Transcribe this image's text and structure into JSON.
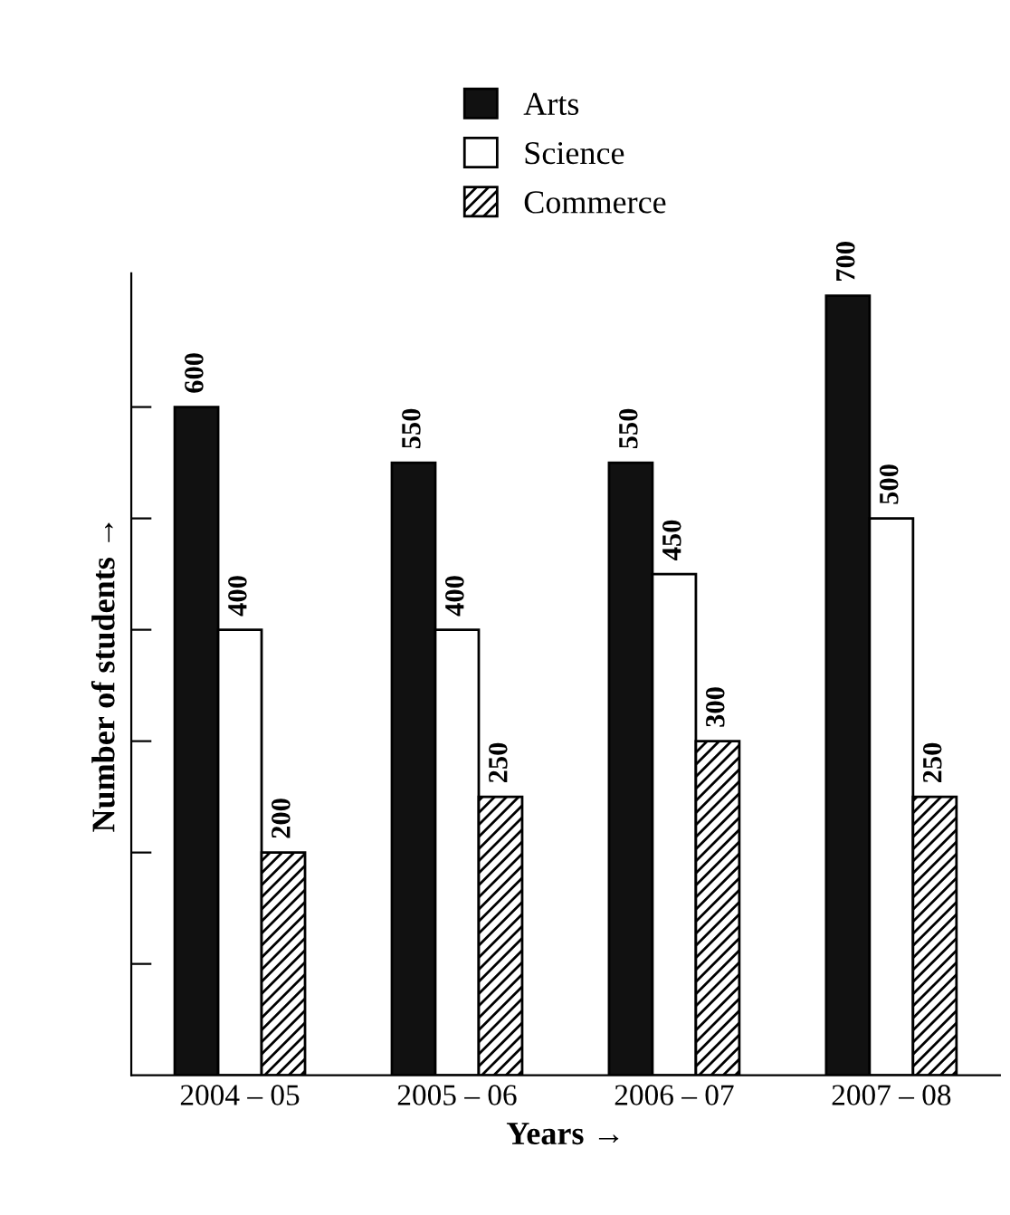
{
  "chart_data": {
    "type": "bar",
    "xlabel": "Years →",
    "ylabel": "Number of students →",
    "categories": [
      "2004 – 05",
      "2005 – 06",
      "2006 – 07",
      "2007 – 08"
    ],
    "series": [
      {
        "name": "Arts",
        "color": "#111111",
        "values": [
          600,
          550,
          550,
          700
        ]
      },
      {
        "name": "Science",
        "color": "#ffffff",
        "values": [
          400,
          400,
          450,
          500
        ]
      },
      {
        "name": "Commerce",
        "color": "#000000",
        "values": [
          200,
          250,
          300,
          250
        ]
      }
    ],
    "ylim": [
      0,
      720
    ],
    "yticks": [
      {
        "value": 100,
        "label": null
      },
      {
        "value": 200,
        "label": null
      },
      {
        "value": 300,
        "label": null
      },
      {
        "value": 400,
        "label": null
      },
      {
        "value": 500,
        "label": null
      },
      {
        "value": 600,
        "label": null
      }
    ],
    "tick_labels": "x",
    "data_labels": true,
    "legend": "top",
    "grid": false
  }
}
